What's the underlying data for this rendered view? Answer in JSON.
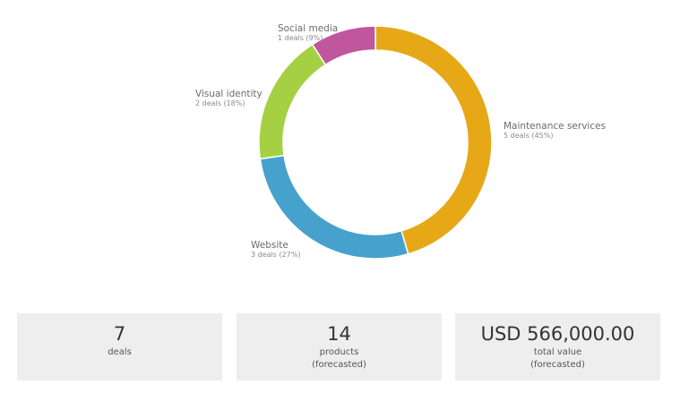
{
  "chart_data": {
    "type": "pie",
    "variant": "donut",
    "categories": [
      "Maintenance services",
      "Website",
      "Visual identity",
      "Social media"
    ],
    "values": [
      5,
      3,
      2,
      1
    ],
    "percent_labels": [
      "5 deals (45%)",
      "3 deals (27%)",
      "2 deals (18%)",
      "1 deals (9%)"
    ],
    "colors": [
      "#e6a817",
      "#46a2cc",
      "#a6d043",
      "#c0569e"
    ],
    "start": "top",
    "direction": "clockwise",
    "title": "",
    "legend": "none"
  },
  "summary": {
    "deals": {
      "value": "7",
      "label": "deals"
    },
    "products": {
      "value": "14",
      "label": "products",
      "sublabel": "(forecasted)"
    },
    "total": {
      "value": "USD 566,000.00",
      "label": "total value",
      "sublabel": "(forecasted)"
    }
  }
}
